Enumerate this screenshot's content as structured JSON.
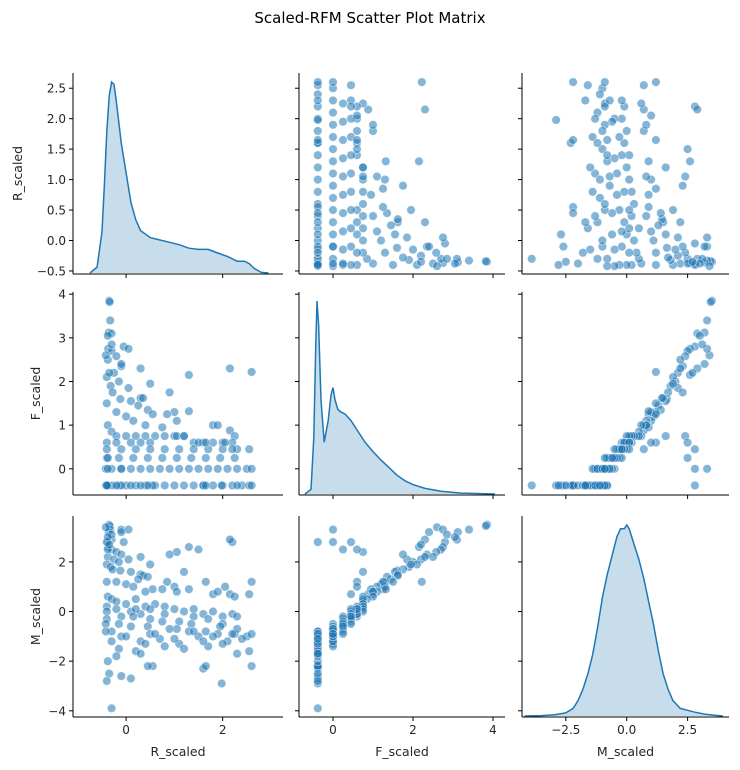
{
  "chart_data": {
    "type": "scatter",
    "title": "Scaled-RFM Scatter Plot Matrix",
    "variables": [
      "R_scaled",
      "F_scaled",
      "M_scaled"
    ],
    "axes": {
      "R_scaled": {
        "lim": [
          -1.1,
          3.25
        ],
        "ticks": [
          0,
          2
        ],
        "tick_labels": [
          "0",
          "2"
        ],
        "ylim": [
          -0.55,
          2.75
        ],
        "yticks": [
          -0.5,
          0.0,
          0.5,
          1.0,
          1.5,
          2.0,
          2.5
        ],
        "ytick_labels": [
          "−0.5",
          "0.0",
          "0.5",
          "1.0",
          "1.5",
          "2.0",
          "2.5"
        ]
      },
      "F_scaled": {
        "lim": [
          -0.85,
          4.3
        ],
        "ticks": [
          0,
          2,
          4
        ],
        "tick_labels": [
          "0",
          "2",
          "4"
        ],
        "ylim": [
          -0.6,
          4.05
        ],
        "yticks": [
          0,
          1,
          2,
          3,
          4
        ],
        "ytick_labels": [
          "0",
          "1",
          "2",
          "3",
          "4"
        ]
      },
      "M_scaled": {
        "lim": [
          -4.3,
          4.2
        ],
        "ticks": [
          -2.5,
          0.0,
          2.5
        ],
        "tick_labels": [
          "−2.5",
          "0.0",
          "2.5"
        ],
        "ylim": [
          -4.25,
          3.85
        ],
        "yticks": [
          -4,
          -2,
          0,
          2
        ],
        "ytick_labels": [
          "−4",
          "−2",
          "0",
          "2"
        ]
      }
    },
    "diagonal": "kde",
    "kde": {
      "R_scaled": {
        "x": [
          -0.75,
          -0.6,
          -0.5,
          -0.45,
          -0.4,
          -0.35,
          -0.3,
          -0.25,
          -0.2,
          -0.1,
          0.0,
          0.1,
          0.2,
          0.3,
          0.5,
          0.7,
          0.9,
          1.1,
          1.3,
          1.5,
          1.7,
          1.9,
          2.1,
          2.3,
          2.45,
          2.55,
          2.65,
          2.8,
          2.95
        ],
        "density": [
          0.0,
          0.05,
          0.35,
          0.75,
          1.2,
          1.5,
          1.62,
          1.6,
          1.45,
          1.1,
          0.85,
          0.6,
          0.45,
          0.36,
          0.3,
          0.28,
          0.26,
          0.24,
          0.21,
          0.2,
          0.2,
          0.17,
          0.14,
          0.1,
          0.1,
          0.08,
          0.04,
          0.005,
          0.0
        ]
      },
      "F_scaled": {
        "x": [
          -0.7,
          -0.55,
          -0.48,
          -0.43,
          -0.4,
          -0.36,
          -0.3,
          -0.22,
          -0.12,
          -0.05,
          0.0,
          0.05,
          0.12,
          0.2,
          0.3,
          0.45,
          0.6,
          0.8,
          1.0,
          1.2,
          1.4,
          1.6,
          1.8,
          2.0,
          2.3,
          2.7,
          3.2,
          3.6,
          4.05
        ],
        "density": [
          0.0,
          0.05,
          0.6,
          1.6,
          2.05,
          1.8,
          1.0,
          0.55,
          0.78,
          1.05,
          1.13,
          1.0,
          0.9,
          0.87,
          0.85,
          0.78,
          0.68,
          0.55,
          0.45,
          0.36,
          0.28,
          0.2,
          0.14,
          0.1,
          0.06,
          0.03,
          0.01,
          0.005,
          0.0
        ]
      },
      "M_scaled": {
        "x": [
          -4.2,
          -3.5,
          -3.0,
          -2.5,
          -2.2,
          -2.0,
          -1.8,
          -1.6,
          -1.4,
          -1.2,
          -1.0,
          -0.8,
          -0.6,
          -0.4,
          -0.25,
          -0.1,
          0.0,
          0.1,
          0.3,
          0.5,
          0.7,
          0.9,
          1.1,
          1.3,
          1.5,
          1.7,
          1.9,
          2.2,
          2.5,
          2.8,
          3.2,
          3.6,
          3.95
        ],
        "density": [
          0.0,
          0.001,
          0.003,
          0.008,
          0.02,
          0.04,
          0.07,
          0.11,
          0.16,
          0.23,
          0.31,
          0.37,
          0.42,
          0.47,
          0.49,
          0.49,
          0.5,
          0.49,
          0.45,
          0.41,
          0.36,
          0.3,
          0.24,
          0.17,
          0.11,
          0.07,
          0.04,
          0.02,
          0.015,
          0.01,
          0.005,
          0.002,
          0.0
        ]
      }
    },
    "points": {
      "columns": [
        "R_scaled",
        "F_scaled",
        "M_scaled"
      ],
      "rows": [
        [
          -0.35,
          3.85,
          3.5
        ],
        [
          -0.34,
          3.82,
          3.45
        ],
        [
          -0.33,
          3.4,
          3.3
        ],
        [
          -0.36,
          3.12,
          3.2
        ],
        [
          -0.3,
          3.1,
          2.9
        ],
        [
          -0.05,
          2.8,
          2.8
        ],
        [
          -0.37,
          2.75,
          2.6
        ],
        [
          -0.3,
          2.7,
          2.5
        ],
        [
          -0.2,
          2.58,
          2.4
        ],
        [
          -0.1,
          2.35,
          2.3
        ],
        [
          -0.38,
          2.5,
          2.2
        ],
        [
          -0.25,
          2.2,
          2.1
        ],
        [
          -0.15,
          2.0,
          2.0
        ],
        [
          0.05,
          1.85,
          2.1
        ],
        [
          -0.4,
          2.1,
          1.9
        ],
        [
          -0.32,
          1.9,
          1.8
        ],
        [
          -0.28,
          1.75,
          1.7
        ],
        [
          -0.12,
          1.6,
          1.65
        ],
        [
          0.1,
          1.55,
          1.6
        ],
        [
          0.3,
          1.62,
          1.5
        ],
        [
          0.35,
          1.62,
          1.45
        ],
        [
          0.25,
          1.45,
          1.3
        ],
        [
          0.45,
          1.35,
          1.4
        ],
        [
          -0.4,
          1.5,
          1.2
        ],
        [
          -0.2,
          1.3,
          1.2
        ],
        [
          0.0,
          1.2,
          1.1
        ],
        [
          0.15,
          1.1,
          1.0
        ],
        [
          0.55,
          1.25,
          0.9
        ],
        [
          1.0,
          1.3,
          1.0
        ],
        [
          0.85,
          1.25,
          1.2
        ],
        [
          1.3,
          1.32,
          0.9
        ],
        [
          1.05,
          1.1,
          0.8
        ],
        [
          1.8,
          1.0,
          0.7
        ],
        [
          1.9,
          1.0,
          0.8
        ],
        [
          2.15,
          0.88,
          0.7
        ],
        [
          2.25,
          0.75,
          0.6
        ],
        [
          2.6,
          2.22,
          1.2
        ],
        [
          2.55,
          0.45,
          0.7
        ],
        [
          0.75,
          0.95,
          0.9
        ],
        [
          0.4,
          1.0,
          0.8
        ],
        [
          -0.38,
          1.0,
          0.6
        ],
        [
          -0.3,
          0.85,
          0.5
        ],
        [
          -0.2,
          0.75,
          0.4
        ],
        [
          0.0,
          0.75,
          0.3
        ],
        [
          0.2,
          0.75,
          0.5
        ],
        [
          0.4,
          0.75,
          0.2
        ],
        [
          0.6,
          0.75,
          0.3
        ],
        [
          0.8,
          0.75,
          0.2
        ],
        [
          1.0,
          0.75,
          0.1
        ],
        [
          1.2,
          0.75,
          0.0
        ],
        [
          1.4,
          0.6,
          0.1
        ],
        [
          1.6,
          0.6,
          -0.1
        ],
        [
          1.8,
          0.6,
          0.0
        ],
        [
          2.0,
          0.6,
          -0.2
        ],
        [
          2.2,
          0.6,
          -0.1
        ],
        [
          -0.4,
          0.6,
          0.2
        ],
        [
          -0.2,
          0.6,
          0.1
        ],
        [
          0.1,
          0.6,
          0.0
        ],
        [
          0.3,
          0.6,
          -0.1
        ],
        [
          0.5,
          0.6,
          0.1
        ],
        [
          -0.4,
          0.45,
          0.0
        ],
        [
          -0.1,
          0.45,
          -0.2
        ],
        [
          0.2,
          0.45,
          0.1
        ],
        [
          0.5,
          0.45,
          -0.3
        ],
        [
          0.8,
          0.45,
          -0.1
        ],
        [
          1.1,
          0.45,
          -0.4
        ],
        [
          1.4,
          0.45,
          -0.2
        ],
        [
          1.7,
          0.45,
          -0.3
        ],
        [
          2.0,
          0.45,
          -0.5
        ],
        [
          2.3,
          0.45,
          -0.2
        ],
        [
          -0.4,
          0.25,
          -0.3
        ],
        [
          -0.15,
          0.25,
          -0.5
        ],
        [
          0.15,
          0.25,
          -0.2
        ],
        [
          0.45,
          0.25,
          -0.6
        ],
        [
          0.75,
          0.25,
          -0.4
        ],
        [
          1.05,
          0.25,
          -0.7
        ],
        [
          1.35,
          0.25,
          -0.5
        ],
        [
          1.65,
          0.25,
          -0.8
        ],
        [
          1.95,
          0.25,
          -0.6
        ],
        [
          2.25,
          0.25,
          -0.9
        ],
        [
          -0.42,
          0.0,
          -0.5
        ],
        [
          -0.3,
          0.0,
          -0.8
        ],
        [
          -0.1,
          0.0,
          -1.0
        ],
        [
          0.1,
          0.0,
          -0.6
        ],
        [
          0.3,
          0.0,
          -1.2
        ],
        [
          0.5,
          0.0,
          -0.9
        ],
        [
          0.7,
          0.0,
          -1.1
        ],
        [
          0.9,
          0.0,
          -0.7
        ],
        [
          1.1,
          0.0,
          -1.3
        ],
        [
          1.3,
          0.0,
          -0.8
        ],
        [
          1.5,
          0.0,
          -1.0
        ],
        [
          1.7,
          0.0,
          -1.4
        ],
        [
          1.9,
          0.0,
          -0.9
        ],
        [
          2.1,
          0.0,
          -1.2
        ],
        [
          2.3,
          0.0,
          -0.7
        ],
        [
          2.5,
          0.0,
          -1.0
        ],
        [
          2.6,
          0.0,
          -0.9
        ],
        [
          -0.42,
          -0.38,
          -0.8
        ],
        [
          -0.3,
          -0.38,
          -1.2
        ],
        [
          -0.15,
          -0.38,
          -1.5
        ],
        [
          0.0,
          -0.38,
          -1.0
        ],
        [
          0.2,
          -0.38,
          -1.6
        ],
        [
          0.4,
          -0.38,
          -1.3
        ],
        [
          0.6,
          -0.38,
          -0.9
        ],
        [
          0.8,
          -0.38,
          -1.4
        ],
        [
          1.0,
          -0.38,
          -1.1
        ],
        [
          1.2,
          -0.38,
          -1.5
        ],
        [
          1.4,
          -0.38,
          -0.8
        ],
        [
          1.6,
          -0.38,
          -1.2
        ],
        [
          1.8,
          -0.38,
          -1.0
        ],
        [
          2.0,
          -0.38,
          -1.3
        ],
        [
          2.2,
          -0.38,
          -0.9
        ],
        [
          2.4,
          -0.38,
          -1.1
        ],
        [
          2.55,
          -0.38,
          -1.6
        ],
        [
          2.6,
          -0.38,
          -2.2
        ],
        [
          -0.3,
          -0.38,
          -3.9
        ],
        [
          -0.1,
          -0.38,
          -2.6
        ],
        [
          0.1,
          -0.38,
          -2.7
        ],
        [
          0.55,
          -0.38,
          -2.2
        ],
        [
          0.45,
          -0.38,
          -2.2
        ],
        [
          1.6,
          -0.38,
          -2.3
        ],
        [
          1.65,
          -0.38,
          -2.2
        ],
        [
          1.98,
          -0.38,
          -2.9
        ],
        [
          -0.35,
          -0.38,
          -2.5
        ],
        [
          -0.38,
          -0.38,
          -2.0
        ],
        [
          -0.4,
          -0.38,
          -2.8
        ],
        [
          -0.2,
          -0.38,
          -1.8
        ],
        [
          0.3,
          -0.38,
          -1.7
        ],
        [
          2.3,
          -0.38,
          -1.7
        ],
        [
          -0.38,
          0.0,
          2.8
        ],
        [
          -0.1,
          0.0,
          3.3
        ],
        [
          -0.38,
          0.25,
          2.5
        ],
        [
          -0.4,
          -0.38,
          2.8
        ],
        [
          1.05,
          0.75,
          2.4
        ],
        [
          1.5,
          0.6,
          2.5
        ],
        [
          2.2,
          0.45,
          2.8
        ],
        [
          1.2,
          0.75,
          1.6
        ],
        [
          1.65,
          0.6,
          1.2
        ],
        [
          2.05,
          0.6,
          1.0
        ],
        [
          0.9,
          1.75,
          2.3
        ],
        [
          1.3,
          2.15,
          2.6
        ],
        [
          2.15,
          2.3,
          2.9
        ],
        [
          -0.42,
          2.6,
          3.4
        ],
        [
          -0.1,
          2.4,
          3.2
        ],
        [
          0.05,
          2.75,
          3.3
        ],
        [
          -0.3,
          2.85,
          3.1
        ],
        [
          -0.38,
          3.05,
          3.0
        ],
        [
          -0.35,
          2.2,
          2.7
        ],
        [
          0.3,
          2.3,
          2.2
        ],
        [
          0.5,
          1.95,
          1.9
        ]
      ]
    }
  }
}
